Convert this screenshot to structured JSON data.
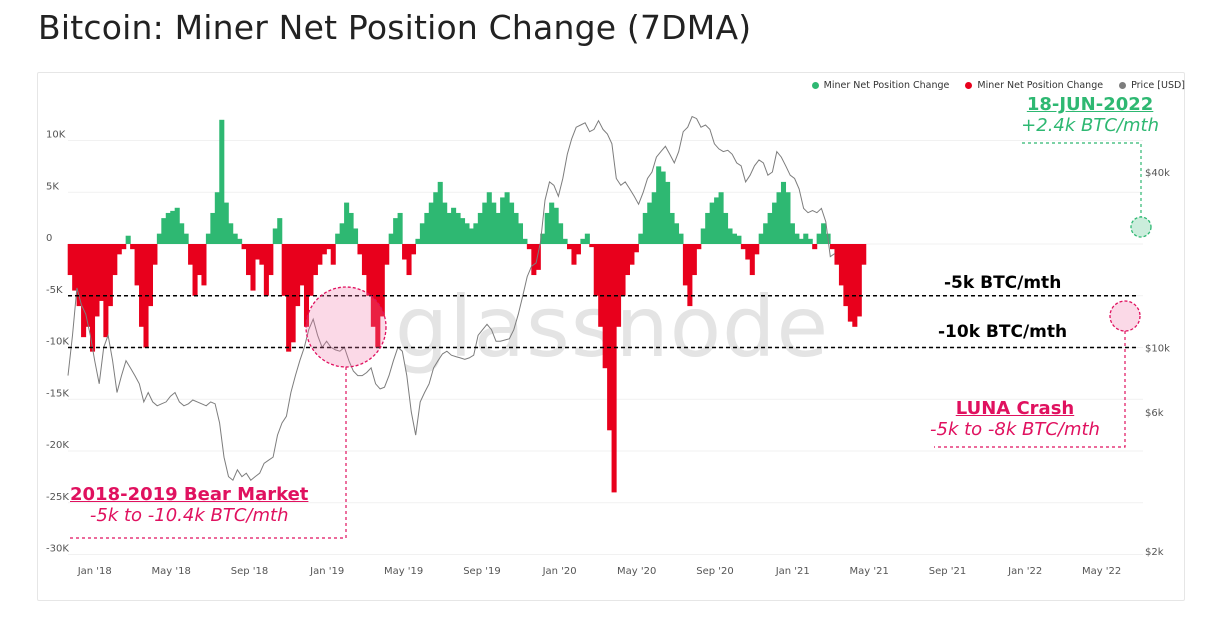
{
  "title": "Bitcoin: Miner Net Position Change (7DMA)",
  "watermark": "glassnode",
  "legend": [
    {
      "label": "Miner Net Position Change",
      "color": "#2eb872"
    },
    {
      "label": "Miner Net Position Change",
      "color": "#e8001c"
    },
    {
      "label": "Price [USD]",
      "color": "#7d7d7d"
    }
  ],
  "annotations": {
    "june": {
      "title": "18-JUN-2022",
      "subtitle": "+2.4k BTC/mth",
      "color": "#2eb872"
    },
    "bear": {
      "title": "2018-2019 Bear Market",
      "subtitle": "-5k to -10.4k BTC/mth",
      "color": "#e0115f"
    },
    "luna": {
      "title": "LUNA Crash",
      "subtitle": "-5k to -8k BTC/mth",
      "color": "#e0115f"
    },
    "level_5k": "-5k BTC/mth",
    "level_10k": "-10k BTC/mth"
  },
  "chart_data": {
    "type": "area",
    "title": "Bitcoin: Miner Net Position Change (7DMA)",
    "x_ticks": [
      "Jan '18",
      "May '18",
      "Sep '18",
      "Jan '19",
      "May '19",
      "Sep '19",
      "Jan '20",
      "May '20",
      "Sep '20",
      "Jan '21",
      "May '21",
      "Sep '21",
      "Jan '22",
      "May '22"
    ],
    "y_left": {
      "ticks": [
        "10K",
        "5K",
        "0",
        "-5K",
        "-10K",
        "-15K",
        "-20K",
        "-25K",
        "-30K"
      ],
      "range": [
        -30000,
        12000
      ]
    },
    "y_right": {
      "ticks": [
        "$40k",
        "$10k",
        "$6k",
        "$2k"
      ],
      "scale": "log",
      "range": [
        1850,
        100000
      ]
    },
    "reference_lines": [
      -5000,
      -10000
    ],
    "series": [
      {
        "name": "Miner Net Position Change",
        "unit": "BTC",
        "x_start": "2017-11-20",
        "x_step_days": 7,
        "values": [
          -3000,
          -4500,
          -6000,
          -9000,
          -8000,
          -10400,
          -7000,
          -5500,
          -9000,
          -6000,
          -3000,
          -1000,
          -500,
          800,
          -500,
          -4000,
          -8000,
          -10000,
          -6000,
          -2000,
          1000,
          2500,
          3000,
          3200,
          3500,
          2000,
          1000,
          -2000,
          -5000,
          -3000,
          -4000,
          1000,
          3000,
          5000,
          12000,
          4000,
          2000,
          1000,
          500,
          -500,
          -3000,
          -4500,
          -1500,
          -2000,
          -5000,
          -3000,
          1500,
          2500,
          -5000,
          -10400,
          -9500,
          -6000,
          -4000,
          -8000,
          -5000,
          -3000,
          -2000,
          -1000,
          -500,
          -2000,
          1000,
          2000,
          4000,
          3000,
          1500,
          -1000,
          -3000,
          -5000,
          -8000,
          -10000,
          -7000,
          -2000,
          1000,
          2500,
          3000,
          -1500,
          -3000,
          -1000,
          500,
          2000,
          3000,
          4000,
          5000,
          6000,
          4000,
          3000,
          3500,
          3000,
          2500,
          2000,
          1500,
          2000,
          3000,
          4000,
          5000,
          4000,
          3000,
          4500,
          5000,
          4000,
          3000,
          2000,
          500,
          -500,
          -3000,
          -2500,
          1000,
          3000,
          4000,
          3500,
          2000,
          500,
          -500,
          -2000,
          -1000,
          500,
          1000,
          -300,
          -5000,
          -8000,
          -12000,
          -18000,
          -24000,
          -8000,
          -5000,
          -3000,
          -2000,
          -800,
          1000,
          3000,
          4000,
          5000,
          7500,
          7000,
          6000,
          3000,
          2000,
          1000,
          -4000,
          -6000,
          -3000,
          -500,
          1500,
          3000,
          4000,
          4500,
          5000,
          3000,
          1500,
          1000,
          800,
          -500,
          -1500,
          -3000,
          -1000,
          1000,
          2000,
          3000,
          4000,
          5000,
          6000,
          5000,
          2000,
          1000,
          500,
          1000,
          500,
          -500,
          1000,
          2000,
          1000,
          -500,
          -2000,
          -4000,
          -6000,
          -7500,
          -8000,
          -7000,
          -2000
        ]
      },
      {
        "name": "Price [USD]",
        "unit": "USD",
        "x_start": "2017-11-20",
        "x_step_days": 7,
        "values": [
          8000,
          11000,
          16000,
          14000,
          13000,
          11000,
          9000,
          7500,
          10000,
          11000,
          9000,
          7000,
          8000,
          9000,
          8500,
          8000,
          7500,
          6500,
          7000,
          6500,
          6300,
          6400,
          6500,
          6800,
          7000,
          6500,
          6300,
          6400,
          6600,
          6500,
          6400,
          6300,
          6500,
          6400,
          5500,
          4200,
          3600,
          3500,
          3800,
          3600,
          3700,
          3500,
          3600,
          3700,
          4000,
          4100,
          4200,
          5000,
          5500,
          5800,
          7000,
          8000,
          9000,
          10000,
          11500,
          12500,
          11000,
          10000,
          10500,
          10000,
          9800,
          9700,
          10000,
          9000,
          8300,
          8000,
          8000,
          8200,
          8500,
          7500,
          7200,
          7300,
          8000,
          9000,
          10000,
          9700,
          8000,
          6000,
          5000,
          6500,
          7000,
          7500,
          8500,
          9000,
          9500,
          9700,
          9400,
          9300,
          9200,
          9100,
          9200,
          9400,
          11000,
          11500,
          12000,
          11500,
          10500,
          10500,
          10600,
          10700,
          11500,
          13000,
          15000,
          17500,
          19000,
          19500,
          23000,
          32000,
          37000,
          36000,
          33000,
          38000,
          46000,
          52000,
          57000,
          58000,
          59000,
          55000,
          56000,
          60000,
          56000,
          54000,
          50000,
          38000,
          36000,
          37000,
          35000,
          33000,
          31000,
          34000,
          38000,
          40000,
          45000,
          47000,
          49000,
          46000,
          43000,
          47000,
          55000,
          57000,
          62000,
          61000,
          57000,
          58000,
          56000,
          50000,
          48000,
          47000,
          47500,
          46000,
          43000,
          42000,
          37000,
          39000,
          42000,
          44000,
          43000,
          39000,
          40000,
          47000,
          45000,
          42000,
          39000,
          38000,
          35000,
          30000,
          29000,
          29500,
          29000,
          30000,
          27000,
          20500,
          21000
        ]
      }
    ]
  }
}
